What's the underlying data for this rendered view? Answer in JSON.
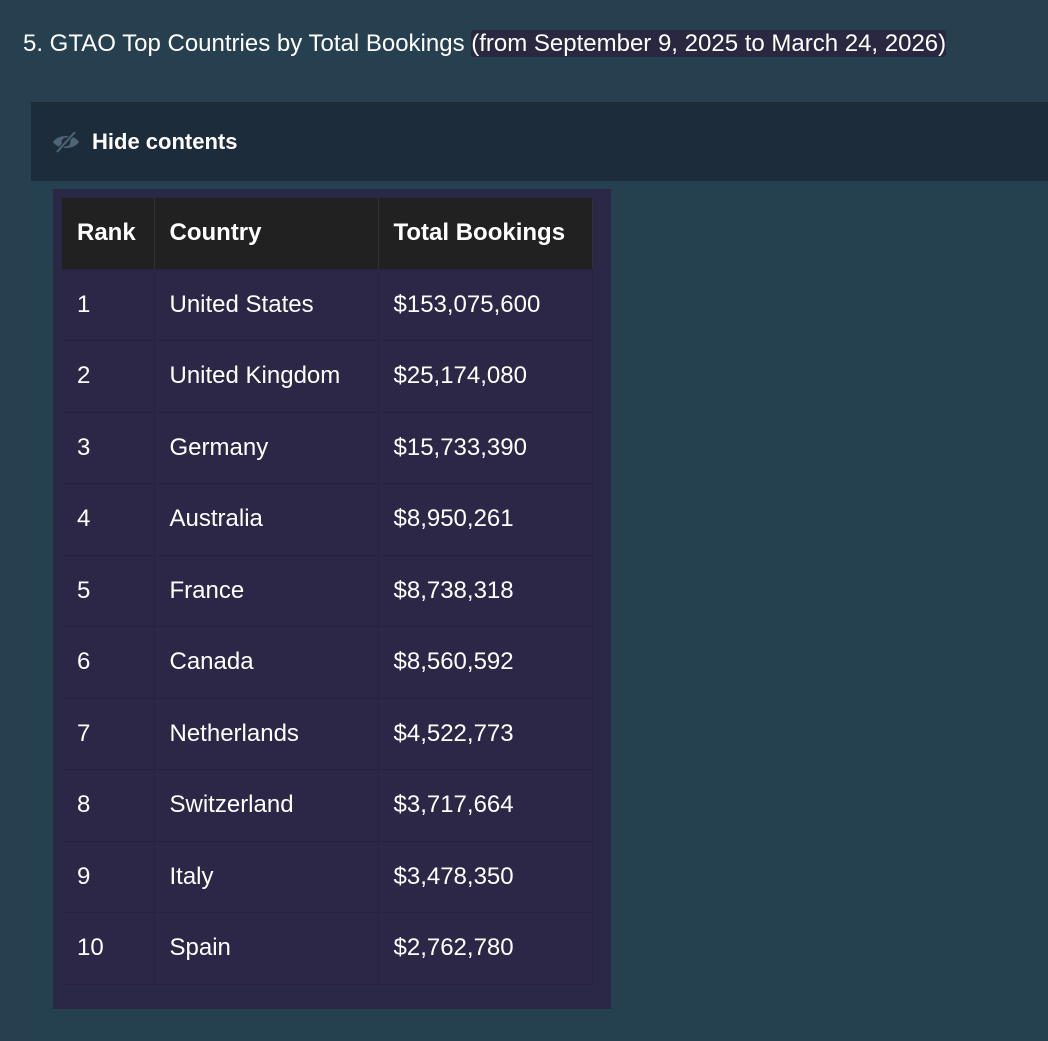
{
  "heading": {
    "prefix": "5. GTAO Top Countries by Total Bookings ",
    "highlight": "(from September 9, 2025 to March 24, 2026)"
  },
  "spoiler": {
    "label": "Hide contents",
    "icon": "eye-slash-icon"
  },
  "table": {
    "columns": [
      "Rank",
      "Country",
      "Total Bookings"
    ],
    "rows": [
      {
        "rank": "1",
        "country": "United States",
        "bookings": "$153,075,600"
      },
      {
        "rank": "2",
        "country": "United Kingdom",
        "bookings": "$25,174,080"
      },
      {
        "rank": "3",
        "country": "Germany",
        "bookings": "$15,733,390"
      },
      {
        "rank": "4",
        "country": "Australia",
        "bookings": "$8,950,261"
      },
      {
        "rank": "5",
        "country": "France",
        "bookings": "$8,738,318"
      },
      {
        "rank": "6",
        "country": "Canada",
        "bookings": "$8,560,592"
      },
      {
        "rank": "7",
        "country": "Netherlands",
        "bookings": "$4,522,773"
      },
      {
        "rank": "8",
        "country": "Switzerland",
        "bookings": "$3,717,664"
      },
      {
        "rank": "9",
        "country": "Italy",
        "bookings": "$3,478,350"
      },
      {
        "rank": "10",
        "country": "Spain",
        "bookings": "$2,762,780"
      }
    ]
  },
  "colors": {
    "page_background": "#26404f",
    "spoiler_header": "#1c2c3a",
    "table_frame": "#2b2746",
    "table_header": "#222122",
    "table_cell": "#2c2747"
  }
}
